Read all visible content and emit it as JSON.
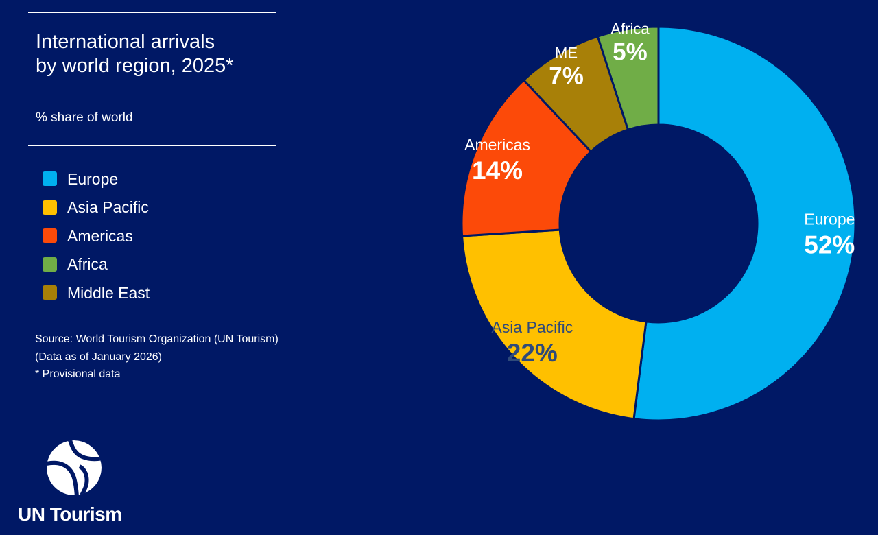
{
  "chart_data": {
    "type": "pie",
    "title": "International arrivals by world region, 2025*",
    "title_lines": [
      "International arrivals",
      "by world region, 2025*"
    ],
    "subtitle": "% share of world",
    "value_suffix": "%",
    "slices": [
      {
        "name": "Europe",
        "value": 52,
        "label": "Europe",
        "color": "#00b0f0",
        "text_color": "#ffffff"
      },
      {
        "name": "Asia Pacific",
        "value": 22,
        "label": "Asia Pacific",
        "color": "#ffc000",
        "text_color": "#2f4a7a"
      },
      {
        "name": "Americas",
        "value": 14,
        "label": "Americas",
        "color": "#fc4a09",
        "text_color": "#ffffff"
      },
      {
        "name": "Middle East",
        "value": 7,
        "label": "ME",
        "color": "#a88008",
        "text_color": "#ffffff"
      },
      {
        "name": "Africa",
        "value": 5,
        "label": "Africa",
        "color": "#70ad47",
        "text_color": "#ffffff"
      }
    ],
    "legend": [
      "Europe",
      "Asia Pacific",
      "Americas",
      "Africa",
      "Middle East"
    ],
    "legend_colors": [
      "#00b0f0",
      "#ffc000",
      "#fc4a09",
      "#70ad47",
      "#a88008"
    ],
    "legend_position": "left"
  },
  "notes": {
    "source": "Source: World Tourism Organization (UN Tourism)",
    "date": "(Data as of January 2026)",
    "provisional": "* Provisional data"
  },
  "brand": {
    "name": "UN Tourism",
    "background": "#001865"
  }
}
